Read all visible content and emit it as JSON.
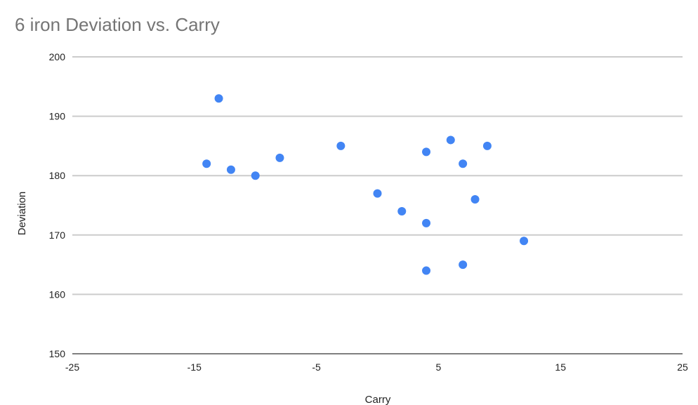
{
  "chart_data": {
    "type": "scatter",
    "title": "6 iron Deviation vs. Carry",
    "xlabel": "Carry",
    "ylabel": "Deviation",
    "xlim": [
      -25,
      25
    ],
    "ylim": [
      150,
      200
    ],
    "x_ticks": [
      -25,
      -15,
      -5,
      5,
      15,
      25
    ],
    "y_ticks": [
      150,
      160,
      170,
      180,
      190,
      200
    ],
    "grid": true,
    "legend": "none",
    "point_color": "#4285f4",
    "grid_color": "#cccccc",
    "series": [
      {
        "points": [
          {
            "x": -14,
            "y": 182
          },
          {
            "x": -13,
            "y": 193
          },
          {
            "x": -12,
            "y": 181
          },
          {
            "x": -10,
            "y": 180
          },
          {
            "x": -8,
            "y": 183
          },
          {
            "x": -3,
            "y": 185
          },
          {
            "x": 0,
            "y": 177
          },
          {
            "x": 2,
            "y": 174
          },
          {
            "x": 4,
            "y": 184
          },
          {
            "x": 4,
            "y": 172
          },
          {
            "x": 4,
            "y": 164
          },
          {
            "x": 6,
            "y": 186
          },
          {
            "x": 7,
            "y": 182
          },
          {
            "x": 7,
            "y": 165
          },
          {
            "x": 8,
            "y": 176
          },
          {
            "x": 9,
            "y": 185
          },
          {
            "x": 12,
            "y": 169
          }
        ]
      }
    ]
  }
}
